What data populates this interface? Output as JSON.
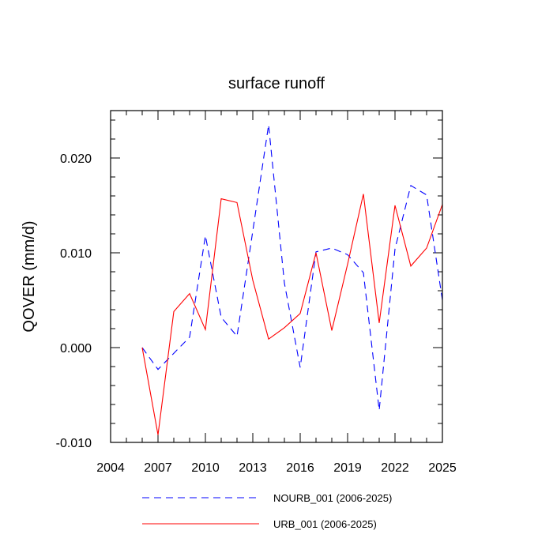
{
  "chart_data": {
    "type": "line",
    "title": "surface runoff",
    "xlabel": "",
    "ylabel": "QOVER  (mm/d)",
    "xlim": [
      2004,
      2025
    ],
    "ylim": [
      -0.01,
      0.025
    ],
    "x_ticks": [
      2004,
      2007,
      2010,
      2013,
      2016,
      2019,
      2022,
      2025
    ],
    "x_tick_labels": [
      "2004",
      "2007",
      "2010",
      "2013",
      "2016",
      "2019",
      "2022",
      "2025"
    ],
    "y_ticks": [
      -0.01,
      0.0,
      0.01,
      0.02
    ],
    "y_tick_labels": [
      "-0.010",
      "0.000",
      "0.010",
      "0.020"
    ],
    "grid": false,
    "legend_position": "bottom",
    "x": [
      2006,
      2007,
      2008,
      2009,
      2010,
      2011,
      2012,
      2013,
      2014,
      2015,
      2016,
      2017,
      2018,
      2019,
      2020,
      2021,
      2022,
      2023,
      2024,
      2025
    ],
    "series": [
      {
        "name": "NOURB_001 (2006-2025)",
        "color": "#0000ff",
        "dash": "dashed",
        "values": [
          0.0,
          -0.0023,
          -0.0006,
          0.0011,
          0.0118,
          0.0032,
          0.0012,
          0.0123,
          0.0235,
          0.0068,
          -0.0021,
          0.0101,
          0.0105,
          0.0098,
          0.0079,
          -0.0066,
          0.0104,
          0.0171,
          0.0161,
          0.005
        ]
      },
      {
        "name": "URB_001 (2006-2025)",
        "color": "#ff0000",
        "dash": "solid",
        "values": [
          0.0,
          -0.0092,
          0.0038,
          0.0057,
          0.0019,
          0.0157,
          0.0153,
          0.0071,
          0.0009,
          0.0021,
          0.0036,
          0.01,
          0.0018,
          0.0088,
          0.0162,
          0.0026,
          0.015,
          0.0086,
          0.0105,
          0.0151
        ]
      }
    ]
  }
}
